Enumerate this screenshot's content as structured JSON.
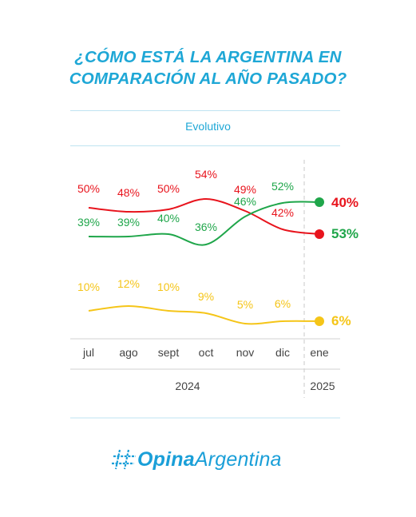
{
  "header": {
    "title_line1": "¿CÓMO ESTÁ LA ARGENTINA EN",
    "title_line2": "COMPARACIÓN AL AÑO PASADO?",
    "subtitle": "Evolutivo"
  },
  "chart_data": {
    "type": "line",
    "categories": [
      "jul",
      "ago",
      "sept",
      "oct",
      "nov",
      "dic",
      "ene"
    ],
    "year_groups": [
      {
        "label": "2024",
        "categories": [
          "jul",
          "ago",
          "sept",
          "oct",
          "nov",
          "dic"
        ]
      },
      {
        "label": "2025",
        "categories": [
          "ene"
        ]
      }
    ],
    "series": [
      {
        "color": "#e8141d",
        "values": [
          50,
          48,
          50,
          54,
          49,
          42,
          40
        ],
        "labels": [
          "50%",
          "48%",
          "50%",
          "54%",
          "49%",
          "42%",
          "40%"
        ]
      },
      {
        "color": "#1fa64a",
        "values": [
          39,
          39,
          40,
          36,
          46,
          52,
          53
        ],
        "labels": [
          "39%",
          "39%",
          "40%",
          "36%",
          "46%",
          "52%",
          "53%"
        ]
      },
      {
        "color": "#f5c518",
        "values": [
          10,
          12,
          10,
          9,
          5,
          6,
          6
        ],
        "labels": [
          "10%",
          "12%",
          "10%",
          "9%",
          "5%",
          "6%",
          "6%"
        ]
      }
    ],
    "legend": "none",
    "grid": false
  },
  "brand": {
    "logo_icon": "hash-icon",
    "name_bold": "Opina",
    "name_regular": "Argentina",
    "color": "#1a9fd8"
  }
}
